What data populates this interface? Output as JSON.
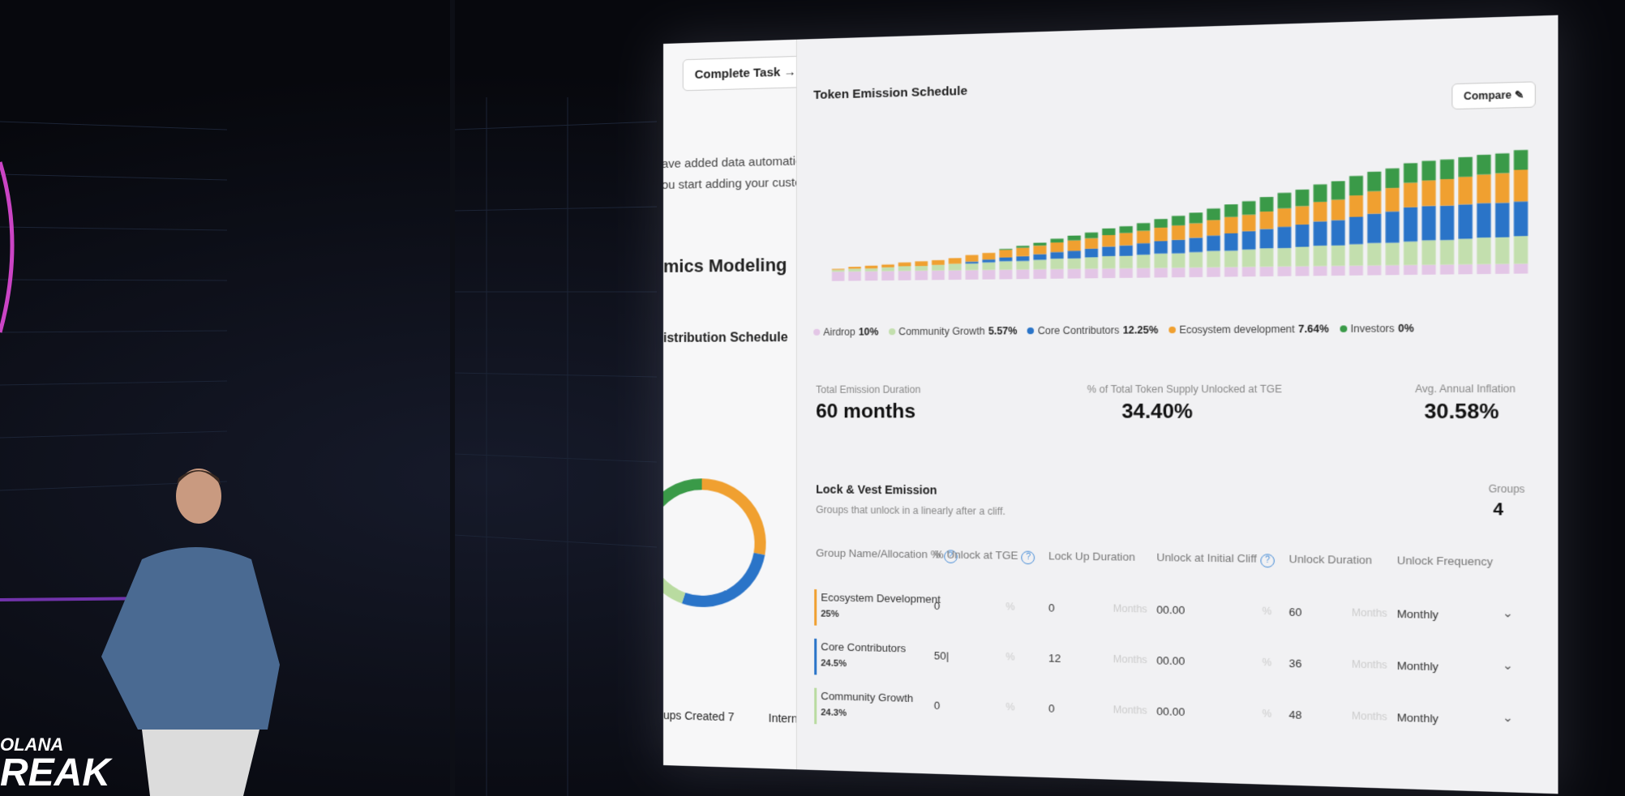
{
  "event_logo": {
    "line1": "OLANA",
    "line2": "REAK"
  },
  "sidebar": {
    "button": "Complete Task →",
    "notice": [
      "ave added data automaticall",
      "ou start adding your custom c"
    ],
    "heading": "mics Modeling",
    "subheading": "istribution Schedule",
    "donut": {
      "values": [
        25,
        24.5,
        24.3,
        16
      ],
      "colors": [
        "#f0a030",
        "#2a74c8",
        "#b9dba0",
        "#3a9a48"
      ]
    },
    "footer": [
      "ups Created 7",
      "Interna"
    ]
  },
  "chart_data": {
    "type": "bar",
    "stacked": true,
    "title": "Token Emission Schedule",
    "button": "Compare ✎",
    "ylim": [
      0,
      150
    ],
    "categories": [
      null,
      null,
      null,
      null,
      null,
      null,
      null,
      null,
      null,
      null,
      null,
      null,
      null,
      null,
      null,
      null,
      null,
      null,
      null,
      null,
      null,
      null,
      null,
      null,
      null,
      null,
      null,
      null,
      null,
      null,
      null,
      null,
      null,
      null,
      null,
      null,
      null,
      null,
      null,
      null
    ],
    "series": [
      {
        "name": "Airdrop",
        "legend_value": "10%",
        "color": "#e3c6e6",
        "values": [
          10,
          10,
          10,
          10,
          10,
          10,
          10,
          10,
          10,
          10,
          10,
          10,
          10,
          10,
          10,
          10,
          10,
          10,
          10,
          10,
          10,
          10,
          10,
          10,
          10,
          10,
          10,
          10,
          10,
          10,
          10,
          10,
          10,
          10,
          10,
          10,
          10,
          10,
          10,
          10
        ]
      },
      {
        "name": "Community Growth",
        "legend_value": "5.57%",
        "color": "#c3dfae",
        "values": [
          2,
          3,
          3,
          4,
          5,
          5,
          6,
          7,
          7,
          8,
          9,
          9,
          10,
          11,
          11,
          12,
          13,
          13,
          14,
          15,
          15,
          16,
          17,
          17,
          18,
          19,
          19,
          20,
          21,
          21,
          22,
          23,
          23,
          24,
          25,
          25,
          26,
          27,
          27,
          28
        ]
      },
      {
        "name": "Core Contributors",
        "legend_value": "12.25%",
        "color": "#2a74c8",
        "values": [
          0,
          0,
          0,
          0,
          0,
          0,
          0,
          0,
          2,
          3,
          4,
          5,
          6,
          7,
          8,
          9,
          10,
          11,
          12,
          13,
          14,
          15,
          16,
          18,
          19,
          20,
          22,
          23,
          25,
          26,
          28,
          30,
          32,
          35,
          35,
          35,
          35,
          35,
          35,
          35
        ]
      },
      {
        "name": "Ecosystem development",
        "legend_value": "7.64%",
        "color": "#f0a030",
        "values": [
          1,
          2,
          3,
          3,
          4,
          5,
          5,
          6,
          7,
          7,
          8,
          9,
          9,
          10,
          11,
          11,
          12,
          13,
          13,
          14,
          15,
          15,
          16,
          17,
          17,
          18,
          19,
          19,
          20,
          21,
          22,
          23,
          24,
          25,
          26,
          27,
          28,
          29,
          30,
          32
        ]
      },
      {
        "name": "Investors",
        "legend_value": "0%",
        "color": "#3a9a48",
        "values": [
          0,
          0,
          0,
          0,
          0,
          0,
          0,
          0,
          0,
          0,
          1,
          2,
          3,
          4,
          5,
          6,
          7,
          7,
          8,
          9,
          10,
          11,
          12,
          13,
          14,
          15,
          16,
          17,
          18,
          19,
          20,
          20,
          20,
          20,
          20,
          20,
          20,
          20,
          20,
          20
        ]
      }
    ]
  },
  "stats": [
    {
      "label": "Total Emission Duration",
      "value": "60 months"
    },
    {
      "label": "% of Total Token Supply Unlocked at TGE",
      "value": "34.40%"
    },
    {
      "label": "Avg. Annual Inflation",
      "value": "30.58%"
    }
  ],
  "lock_vest": {
    "title": "Lock & Vest Emission",
    "subtitle": "Groups that unlock in a linearly after a cliff.",
    "groups_label": "Groups",
    "groups_value": "4"
  },
  "table": {
    "headers": [
      "Group Name/Allocation %",
      "% Unlock at TGE",
      "Lock Up Duration",
      "Unlock at Initial Cliff",
      "Unlock Duration",
      "Unlock Frequency"
    ],
    "units": {
      "pct": "%",
      "months": "Months"
    },
    "rows": [
      {
        "name": "Ecosystem Development",
        "allocation": "25%",
        "color": "#f0a030",
        "cells": [
          "0",
          "0",
          "00.00",
          "60",
          "Monthly"
        ]
      },
      {
        "name": "Core Contributors",
        "allocation": "24.5%",
        "color": "#2a74c8",
        "cells": [
          "50|",
          "12",
          "00.00",
          "36",
          "Monthly"
        ]
      },
      {
        "name": "Community Growth",
        "allocation": "24.3%",
        "color": "#b9dba0",
        "cells": [
          "0",
          "0",
          "00.00",
          "48",
          "Monthly"
        ]
      }
    ]
  }
}
